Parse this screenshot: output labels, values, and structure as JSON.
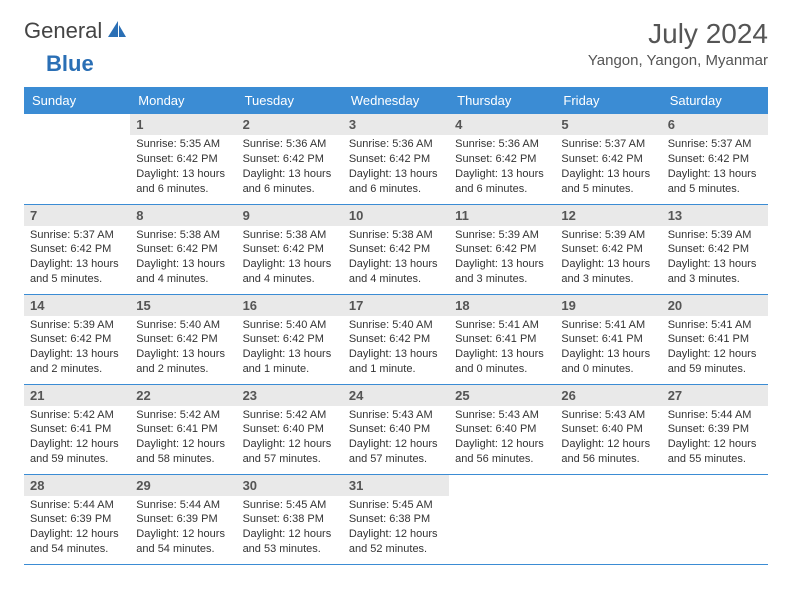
{
  "brand": {
    "text1": "General",
    "text2": "Blue"
  },
  "title": "July 2024",
  "location": "Yangon, Yangon, Myanmar",
  "colors": {
    "header_bg": "#3b8cd4",
    "header_text": "#ffffff",
    "daynum_bg": "#e9e9e9",
    "border": "#3b8cd4",
    "text": "#333333",
    "brand_blue": "#2a6fb5"
  },
  "weekdays": [
    "Sunday",
    "Monday",
    "Tuesday",
    "Wednesday",
    "Thursday",
    "Friday",
    "Saturday"
  ],
  "start_offset": 1,
  "days": [
    {
      "n": 1,
      "sr": "5:35 AM",
      "ss": "6:42 PM",
      "dl": "13 hours and 6 minutes."
    },
    {
      "n": 2,
      "sr": "5:36 AM",
      "ss": "6:42 PM",
      "dl": "13 hours and 6 minutes."
    },
    {
      "n": 3,
      "sr": "5:36 AM",
      "ss": "6:42 PM",
      "dl": "13 hours and 6 minutes."
    },
    {
      "n": 4,
      "sr": "5:36 AM",
      "ss": "6:42 PM",
      "dl": "13 hours and 6 minutes."
    },
    {
      "n": 5,
      "sr": "5:37 AM",
      "ss": "6:42 PM",
      "dl": "13 hours and 5 minutes."
    },
    {
      "n": 6,
      "sr": "5:37 AM",
      "ss": "6:42 PM",
      "dl": "13 hours and 5 minutes."
    },
    {
      "n": 7,
      "sr": "5:37 AM",
      "ss": "6:42 PM",
      "dl": "13 hours and 5 minutes."
    },
    {
      "n": 8,
      "sr": "5:38 AM",
      "ss": "6:42 PM",
      "dl": "13 hours and 4 minutes."
    },
    {
      "n": 9,
      "sr": "5:38 AM",
      "ss": "6:42 PM",
      "dl": "13 hours and 4 minutes."
    },
    {
      "n": 10,
      "sr": "5:38 AM",
      "ss": "6:42 PM",
      "dl": "13 hours and 4 minutes."
    },
    {
      "n": 11,
      "sr": "5:39 AM",
      "ss": "6:42 PM",
      "dl": "13 hours and 3 minutes."
    },
    {
      "n": 12,
      "sr": "5:39 AM",
      "ss": "6:42 PM",
      "dl": "13 hours and 3 minutes."
    },
    {
      "n": 13,
      "sr": "5:39 AM",
      "ss": "6:42 PM",
      "dl": "13 hours and 3 minutes."
    },
    {
      "n": 14,
      "sr": "5:39 AM",
      "ss": "6:42 PM",
      "dl": "13 hours and 2 minutes."
    },
    {
      "n": 15,
      "sr": "5:40 AM",
      "ss": "6:42 PM",
      "dl": "13 hours and 2 minutes."
    },
    {
      "n": 16,
      "sr": "5:40 AM",
      "ss": "6:42 PM",
      "dl": "13 hours and 1 minute."
    },
    {
      "n": 17,
      "sr": "5:40 AM",
      "ss": "6:42 PM",
      "dl": "13 hours and 1 minute."
    },
    {
      "n": 18,
      "sr": "5:41 AM",
      "ss": "6:41 PM",
      "dl": "13 hours and 0 minutes."
    },
    {
      "n": 19,
      "sr": "5:41 AM",
      "ss": "6:41 PM",
      "dl": "13 hours and 0 minutes."
    },
    {
      "n": 20,
      "sr": "5:41 AM",
      "ss": "6:41 PM",
      "dl": "12 hours and 59 minutes."
    },
    {
      "n": 21,
      "sr": "5:42 AM",
      "ss": "6:41 PM",
      "dl": "12 hours and 59 minutes."
    },
    {
      "n": 22,
      "sr": "5:42 AM",
      "ss": "6:41 PM",
      "dl": "12 hours and 58 minutes."
    },
    {
      "n": 23,
      "sr": "5:42 AM",
      "ss": "6:40 PM",
      "dl": "12 hours and 57 minutes."
    },
    {
      "n": 24,
      "sr": "5:43 AM",
      "ss": "6:40 PM",
      "dl": "12 hours and 57 minutes."
    },
    {
      "n": 25,
      "sr": "5:43 AM",
      "ss": "6:40 PM",
      "dl": "12 hours and 56 minutes."
    },
    {
      "n": 26,
      "sr": "5:43 AM",
      "ss": "6:40 PM",
      "dl": "12 hours and 56 minutes."
    },
    {
      "n": 27,
      "sr": "5:44 AM",
      "ss": "6:39 PM",
      "dl": "12 hours and 55 minutes."
    },
    {
      "n": 28,
      "sr": "5:44 AM",
      "ss": "6:39 PM",
      "dl": "12 hours and 54 minutes."
    },
    {
      "n": 29,
      "sr": "5:44 AM",
      "ss": "6:39 PM",
      "dl": "12 hours and 54 minutes."
    },
    {
      "n": 30,
      "sr": "5:45 AM",
      "ss": "6:38 PM",
      "dl": "12 hours and 53 minutes."
    },
    {
      "n": 31,
      "sr": "5:45 AM",
      "ss": "6:38 PM",
      "dl": "12 hours and 52 minutes."
    }
  ],
  "labels": {
    "sunrise": "Sunrise:",
    "sunset": "Sunset:",
    "daylight": "Daylight:"
  }
}
